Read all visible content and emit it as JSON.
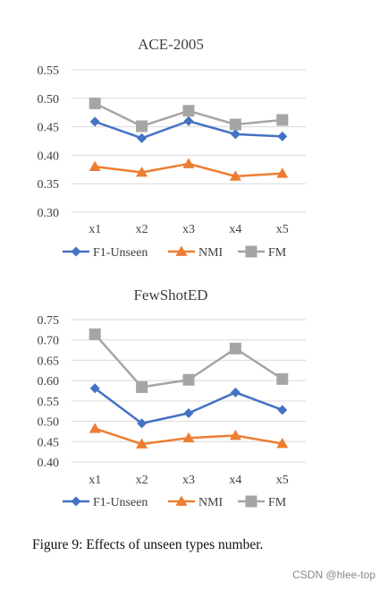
{
  "caption": "Figure 9: Effects of unseen types number.",
  "watermark": "CSDN @hlee-top",
  "colors": {
    "F1-Unseen": "#4472C4",
    "NMI": "#ED7D31",
    "FM": "#A5A5A5",
    "grid": "#D9D9D9"
  },
  "chart_data": [
    {
      "type": "line",
      "title": "ACE-2005",
      "categories": [
        "x1",
        "x2",
        "x3",
        "x4",
        "x5"
      ],
      "ylim": [
        0.3,
        0.55
      ],
      "yticks": [
        "0.30",
        "0.35",
        "0.40",
        "0.45",
        "0.50",
        "0.55"
      ],
      "grid": true,
      "legend": "bottom",
      "series": [
        {
          "name": "F1-Unseen",
          "marker": "diamond",
          "values": [
            0.459,
            0.43,
            0.46,
            0.437,
            0.433
          ]
        },
        {
          "name": "NMI",
          "marker": "triangle",
          "values": [
            0.38,
            0.37,
            0.385,
            0.363,
            0.368
          ]
        },
        {
          "name": "FM",
          "marker": "square",
          "values": [
            0.491,
            0.451,
            0.478,
            0.454,
            0.462
          ]
        }
      ]
    },
    {
      "type": "line",
      "title": "FewShotED",
      "categories": [
        "x1",
        "x2",
        "x3",
        "x4",
        "x5"
      ],
      "ylim": [
        0.4,
        0.75
      ],
      "yticks": [
        "0.40",
        "0.45",
        "0.50",
        "0.55",
        "0.60",
        "0.65",
        "0.70",
        "0.75"
      ],
      "grid": true,
      "legend": "bottom",
      "series": [
        {
          "name": "F1-Unseen",
          "marker": "diamond",
          "values": [
            0.581,
            0.495,
            0.52,
            0.571,
            0.528
          ]
        },
        {
          "name": "NMI",
          "marker": "triangle",
          "values": [
            0.482,
            0.444,
            0.459,
            0.465,
            0.445
          ]
        },
        {
          "name": "FM",
          "marker": "square",
          "values": [
            0.714,
            0.584,
            0.602,
            0.679,
            0.604
          ]
        }
      ]
    }
  ]
}
